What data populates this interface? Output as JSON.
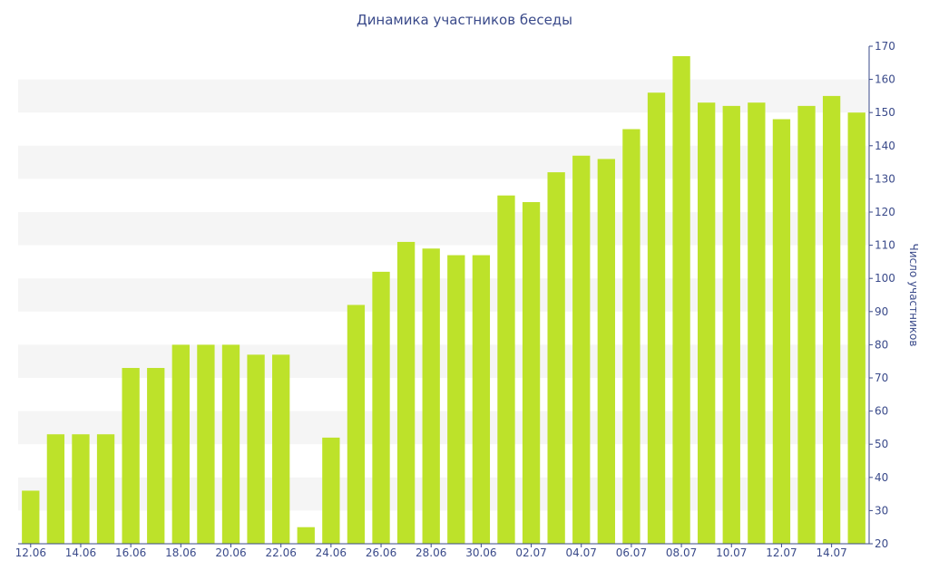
{
  "chart_data": {
    "type": "bar",
    "title": "Динамика участников беседы",
    "xlabel": "",
    "ylabel": "Число участников",
    "ylim": [
      20,
      170
    ],
    "y_ticks": [
      20,
      30,
      40,
      50,
      60,
      70,
      80,
      90,
      100,
      110,
      120,
      130,
      140,
      150,
      160,
      170
    ],
    "y_axis_side": "right",
    "grid": "alternating horizontal bands",
    "legend": "none",
    "categories": [
      "12.06",
      "13.06",
      "14.06",
      "15.06",
      "16.06",
      "17.06",
      "18.06",
      "19.06",
      "20.06",
      "21.06",
      "22.06",
      "23.06",
      "24.06",
      "25.06",
      "26.06",
      "27.06",
      "28.06",
      "29.06",
      "30.06",
      "01.07",
      "02.07",
      "03.07",
      "04.07",
      "05.07",
      "06.07",
      "07.07",
      "08.07",
      "09.07",
      "10.07",
      "11.07",
      "12.07",
      "13.07",
      "14.07",
      "15.07"
    ],
    "x_tick_labels": [
      "12.06",
      "14.06",
      "16.06",
      "18.06",
      "20.06",
      "22.06",
      "24.06",
      "26.06",
      "28.06",
      "30.06",
      "02.07",
      "04.07",
      "06.07",
      "08.07",
      "10.07",
      "12.07",
      "14.07"
    ],
    "values": [
      36,
      53,
      53,
      53,
      73,
      73,
      80,
      80,
      80,
      77,
      77,
      25,
      52,
      92,
      102,
      111,
      109,
      107,
      107,
      125,
      123,
      132,
      137,
      136,
      145,
      156,
      167,
      153,
      152,
      153,
      148,
      152,
      155,
      150
    ],
    "colors": {
      "bar": "#bde22a",
      "band": "#f5f5f5",
      "axis": "#3a4a8a",
      "text": "#3a4a8a"
    }
  }
}
